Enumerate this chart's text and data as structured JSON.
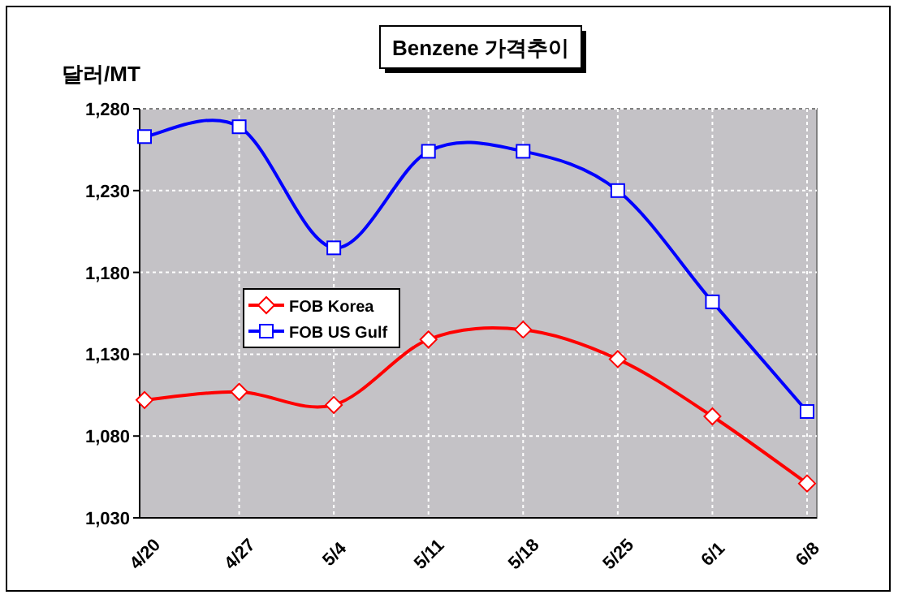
{
  "chart_data": {
    "type": "line",
    "title": "Benzene 가격추이",
    "ylabel": "달러/MT",
    "categories": [
      "4/20",
      "4/27",
      "5/4",
      "5/11",
      "5/18",
      "5/25",
      "6/1",
      "6/8"
    ],
    "series": [
      {
        "name": "FOB Korea",
        "color": "#ff0000",
        "marker": "diamond",
        "values": [
          1102,
          1107,
          1099,
          1139,
          1145,
          1127,
          1092,
          1051
        ]
      },
      {
        "name": "FOB US Gulf",
        "color": "#0000ff",
        "marker": "square",
        "values": [
          1263,
          1269,
          1195,
          1254,
          1254,
          1230,
          1162,
          1095
        ]
      }
    ],
    "ylim": [
      1030,
      1280
    ],
    "yticks": [
      {
        "value": 1030,
        "label": "1,030"
      },
      {
        "value": 1080,
        "label": "1,080"
      },
      {
        "value": 1130,
        "label": "1,130"
      },
      {
        "value": 1180,
        "label": "1,180"
      },
      {
        "value": 1230,
        "label": "1,230"
      },
      {
        "value": 1280,
        "label": "1,280"
      }
    ],
    "grid": true,
    "legend": "left"
  }
}
